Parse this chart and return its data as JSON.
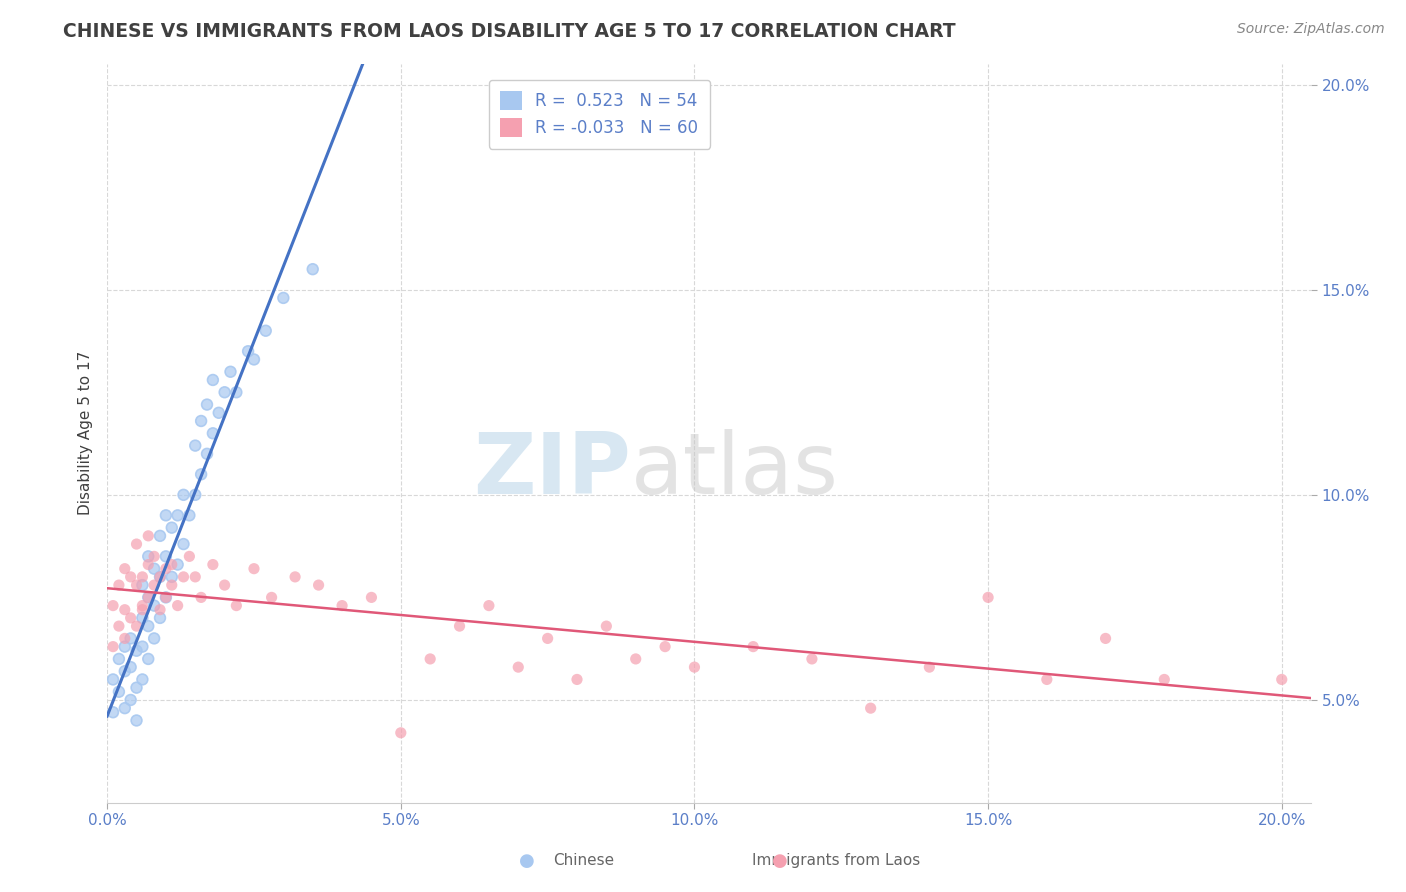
{
  "title": "CHINESE VS IMMIGRANTS FROM LAOS DISABILITY AGE 5 TO 17 CORRELATION CHART",
  "source_text": "Source: ZipAtlas.com",
  "ylabel": "Disability Age 5 to 17",
  "xmin": 0.0,
  "xmax": 0.205,
  "ymin": 0.025,
  "ymax": 0.205,
  "x_tick_vals": [
    0.0,
    0.05,
    0.1,
    0.15,
    0.2
  ],
  "x_tick_labels": [
    "0.0%",
    "5.0%",
    "10.0%",
    "15.0%",
    "20.0%"
  ],
  "y_tick_vals": [
    0.05,
    0.1,
    0.15,
    0.2
  ],
  "y_tick_labels": [
    "5.0%",
    "10.0%",
    "15.0%",
    "20.0%"
  ],
  "chinese_color": "#a8c8f0",
  "laos_color": "#f5a0b0",
  "chinese_R": 0.523,
  "chinese_N": 54,
  "laos_R": -0.033,
  "laos_N": 60,
  "trend_chinese_color": "#4472c4",
  "trend_laos_color": "#e05878",
  "trend_extension_color": "#b0b8c8",
  "background_color": "#ffffff",
  "grid_color": "#d8d8d8",
  "title_color": "#404040",
  "watermark_color": "#cde0f0",
  "chinese_x": [
    0.001,
    0.001,
    0.002,
    0.002,
    0.003,
    0.003,
    0.003,
    0.004,
    0.004,
    0.004,
    0.005,
    0.005,
    0.005,
    0.006,
    0.006,
    0.006,
    0.006,
    0.007,
    0.007,
    0.007,
    0.007,
    0.008,
    0.008,
    0.008,
    0.009,
    0.009,
    0.009,
    0.01,
    0.01,
    0.01,
    0.011,
    0.011,
    0.012,
    0.012,
    0.013,
    0.013,
    0.014,
    0.015,
    0.015,
    0.016,
    0.016,
    0.017,
    0.017,
    0.018,
    0.018,
    0.019,
    0.02,
    0.021,
    0.022,
    0.024,
    0.025,
    0.027,
    0.03,
    0.035
  ],
  "chinese_y": [
    0.047,
    0.055,
    0.052,
    0.06,
    0.048,
    0.057,
    0.063,
    0.05,
    0.058,
    0.065,
    0.045,
    0.053,
    0.062,
    0.055,
    0.063,
    0.07,
    0.078,
    0.06,
    0.068,
    0.075,
    0.085,
    0.065,
    0.073,
    0.082,
    0.07,
    0.08,
    0.09,
    0.075,
    0.085,
    0.095,
    0.08,
    0.092,
    0.083,
    0.095,
    0.088,
    0.1,
    0.095,
    0.1,
    0.112,
    0.105,
    0.118,
    0.11,
    0.122,
    0.115,
    0.128,
    0.12,
    0.125,
    0.13,
    0.125,
    0.135,
    0.133,
    0.14,
    0.148,
    0.155
  ],
  "laos_x": [
    0.001,
    0.001,
    0.002,
    0.002,
    0.003,
    0.003,
    0.003,
    0.004,
    0.004,
    0.005,
    0.005,
    0.005,
    0.006,
    0.006,
    0.006,
    0.007,
    0.007,
    0.007,
    0.008,
    0.008,
    0.009,
    0.009,
    0.01,
    0.01,
    0.011,
    0.011,
    0.012,
    0.013,
    0.014,
    0.015,
    0.016,
    0.018,
    0.02,
    0.022,
    0.025,
    0.028,
    0.032,
    0.036,
    0.04,
    0.045,
    0.05,
    0.055,
    0.06,
    0.065,
    0.07,
    0.075,
    0.08,
    0.085,
    0.09,
    0.095,
    0.1,
    0.11,
    0.12,
    0.13,
    0.14,
    0.15,
    0.16,
    0.17,
    0.18,
    0.2
  ],
  "laos_y": [
    0.063,
    0.073,
    0.068,
    0.078,
    0.065,
    0.072,
    0.082,
    0.07,
    0.08,
    0.068,
    0.078,
    0.088,
    0.072,
    0.08,
    0.073,
    0.075,
    0.083,
    0.09,
    0.078,
    0.085,
    0.08,
    0.072,
    0.082,
    0.075,
    0.083,
    0.078,
    0.073,
    0.08,
    0.085,
    0.08,
    0.075,
    0.083,
    0.078,
    0.073,
    0.082,
    0.075,
    0.08,
    0.078,
    0.073,
    0.075,
    0.042,
    0.06,
    0.068,
    0.073,
    0.058,
    0.065,
    0.055,
    0.068,
    0.06,
    0.063,
    0.058,
    0.063,
    0.06,
    0.048,
    0.058,
    0.075,
    0.055,
    0.065,
    0.055,
    0.055
  ],
  "chinese_trend_x0": 0.0,
  "chinese_trend_x1": 0.07,
  "chinese_trend_ext_x0": 0.07,
  "chinese_trend_ext_x1": 0.205,
  "laos_trend_x0": 0.0,
  "laos_trend_x1": 0.205
}
